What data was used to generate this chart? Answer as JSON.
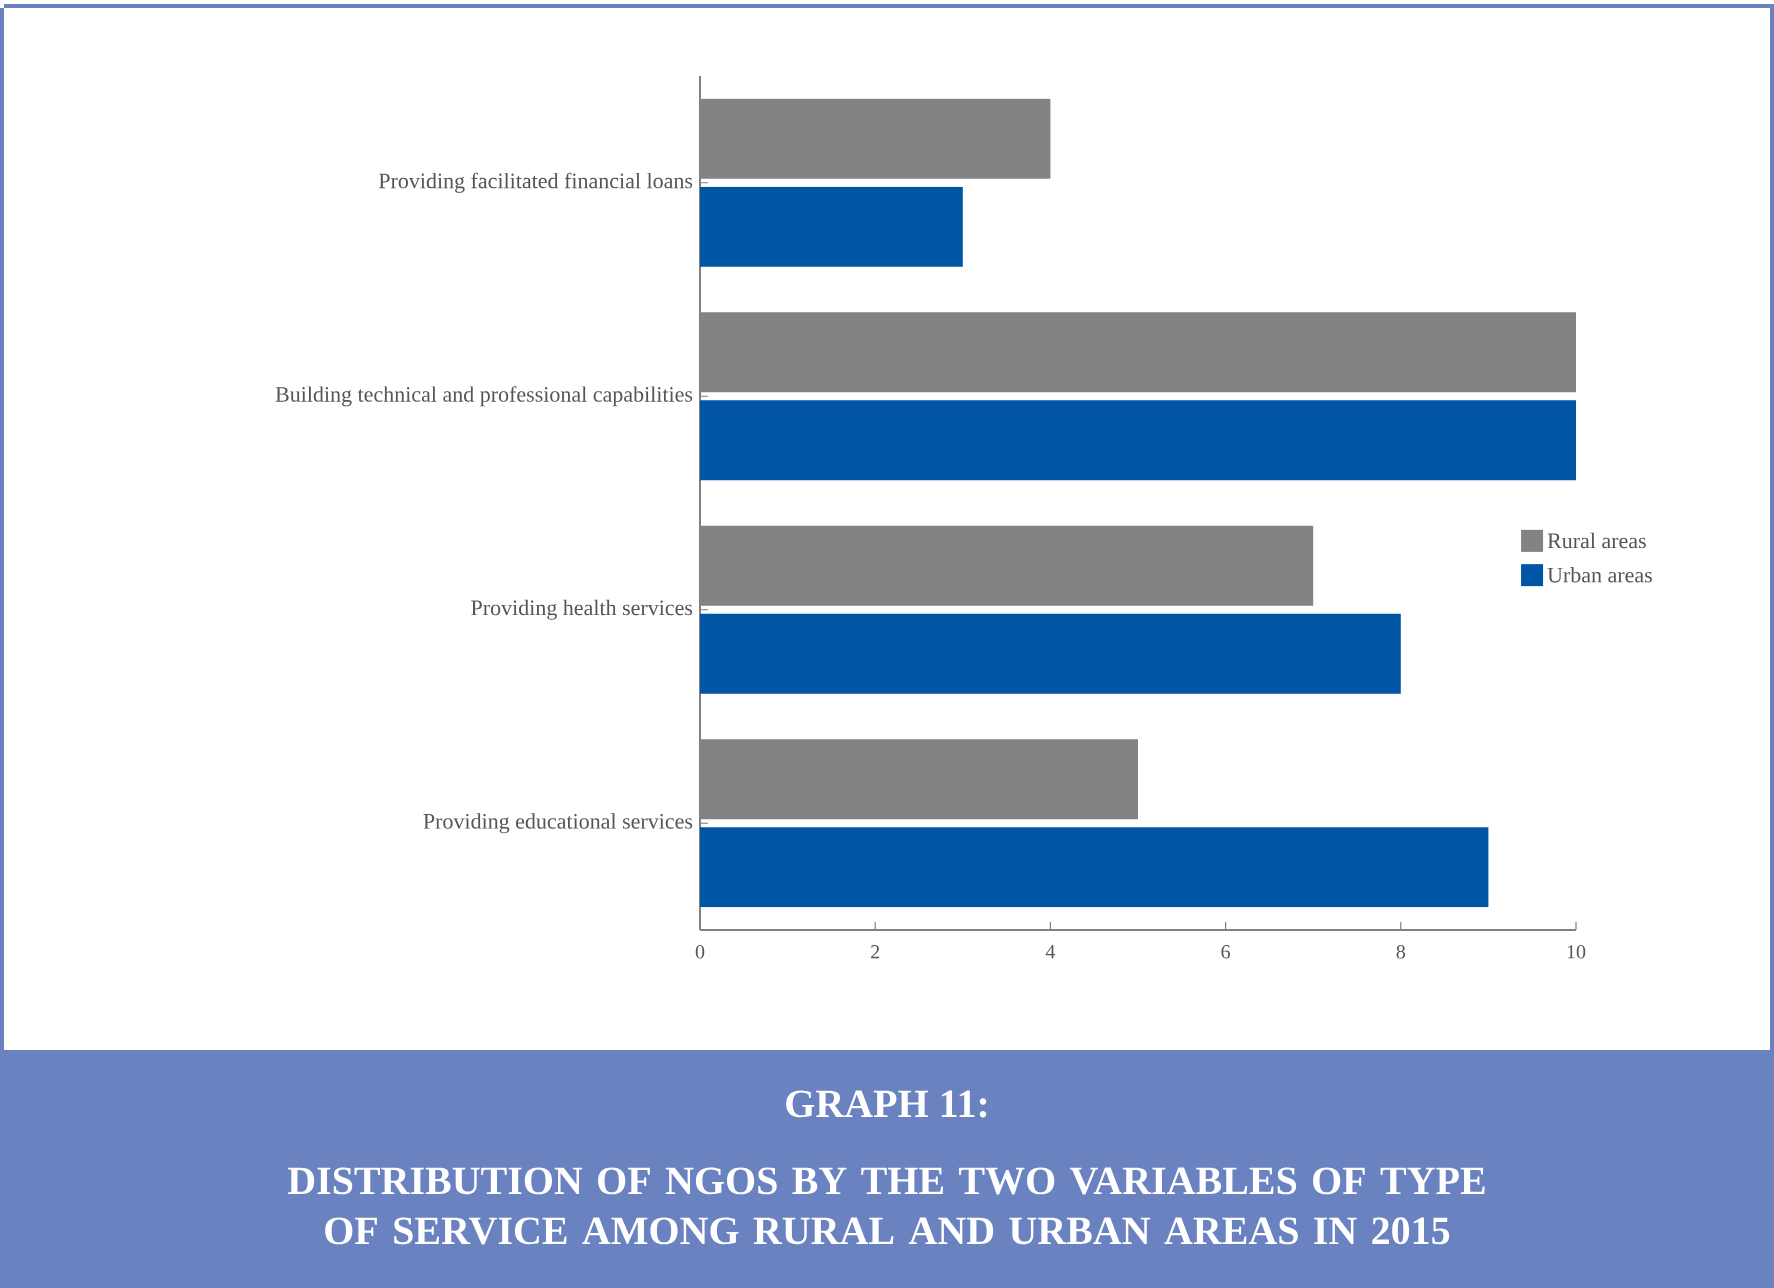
{
  "chart_data": {
    "type": "bar",
    "orientation": "horizontal",
    "title": "GRAPH 11:",
    "subtitle": "DISTRIBUTION OF NGOS BY THE TWO VARIABLES OF TYPE OF SERVICE AMONG RURAL AND URBAN AREAS IN 2015",
    "categories": [
      "Providing facilitated financial loans",
      "Building technical and professional capabilities",
      "Providing health services",
      "Providing educational services"
    ],
    "series": [
      {
        "name": "Rural areas",
        "color": "#838386",
        "values": [
          4,
          10,
          7,
          5
        ]
      },
      {
        "name": "Urban areas",
        "color": "#0055a5",
        "values": [
          3,
          10,
          8,
          9
        ]
      }
    ],
    "xlim": [
      0,
      10
    ],
    "xticks": [
      0,
      2,
      4,
      6,
      8,
      10
    ],
    "grid": false,
    "legend": "right"
  }
}
